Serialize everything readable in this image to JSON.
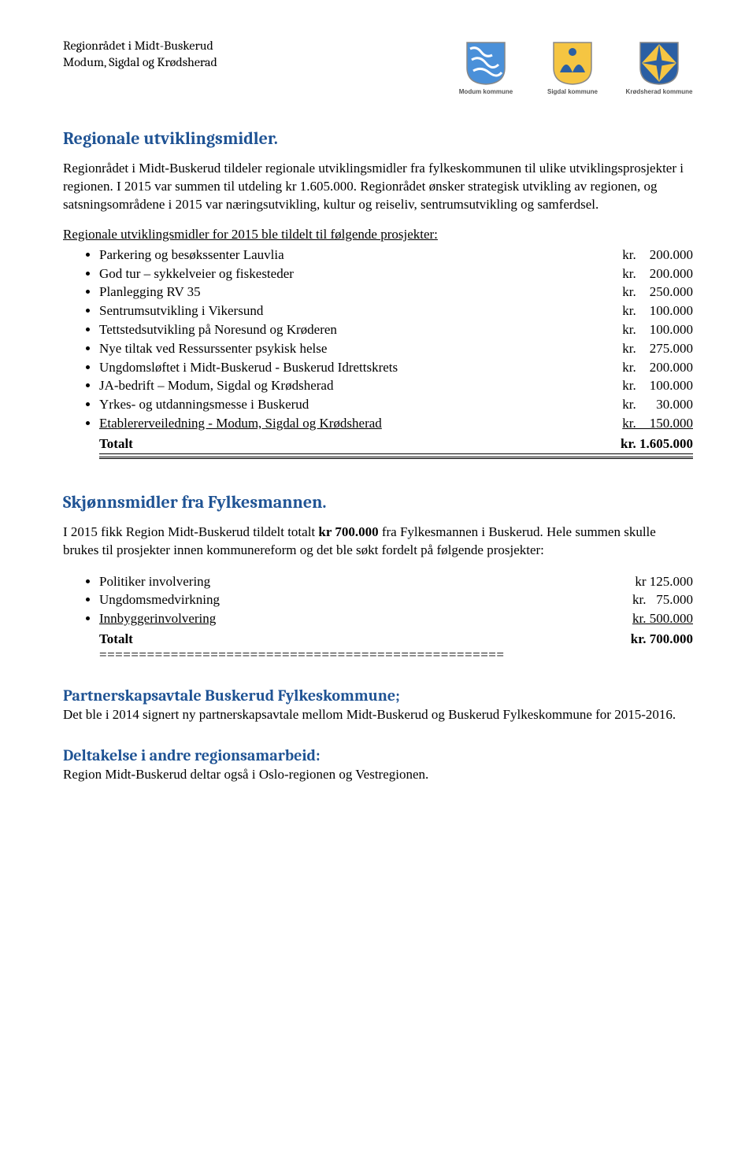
{
  "header": {
    "line1": "Regionrådet i Midt-Buskerud",
    "line2": "Modum, Sigdal og Krødsherad",
    "logos": [
      {
        "caption": "Modum kommune"
      },
      {
        "caption": "Sigdal kommune"
      },
      {
        "caption": "Krødsherad kommune"
      }
    ]
  },
  "section1": {
    "heading": "Regionale utviklingsmidler.",
    "para": "Regionrådet i Midt-Buskerud tildeler regionale utviklingsmidler fra fylkeskommunen til ulike utviklingsprosjekter i regionen. I 2015 var summen til utdeling kr 1.605.000. Regionrådet ønsker strategisk utvikling av regionen, og satsningsområdene i 2015 var næringsutvikling, kultur og reiseliv, sentrumsutvikling og samferdsel.",
    "list_intro": "Regionale utviklingsmidler for 2015 ble tildelt til følgende prosjekter:",
    "items": [
      {
        "label": "Parkering og besøkssenter Lauvlia",
        "amount": "kr.    200.000"
      },
      {
        "label": "God tur – sykkelveier og fiskesteder",
        "amount": "kr.    200.000"
      },
      {
        "label": "Planlegging RV 35",
        "amount": "kr.    250.000"
      },
      {
        "label": "Sentrumsutvikling i Vikersund",
        "amount": "kr.    100.000"
      },
      {
        "label": "Tettstedsutvikling på Noresund og Krøderen",
        "amount": "kr.    100.000"
      },
      {
        "label": "Nye tiltak ved Ressurssenter psykisk helse",
        "amount": "kr.    275.000"
      },
      {
        "label": "Ungdomsløftet i Midt-Buskerud - Buskerud Idrettskrets",
        "amount": "kr.    200.000"
      },
      {
        "label": "JA-bedrift – Modum, Sigdal og Krødsherad",
        "amount": "kr.    100.000"
      },
      {
        "label": "Yrkes- og utdanningsmesse i Buskerud",
        "amount": "kr.      30.000"
      },
      {
        "label": "Etablererveiledning    - Modum, Sigdal og Krødsherad",
        "amount": "kr.    150.000",
        "underline": true
      }
    ],
    "total_label": "Totalt",
    "total_amount": "kr. 1.605.000"
  },
  "section2": {
    "heading": "Skjønnsmidler fra Fylkesmannen.",
    "para_parts": {
      "p1a": "I 2015 fikk Region Midt-Buskerud tildelt totalt ",
      "p1b": "kr 700.000",
      "p1c": " fra Fylkesmannen i Buskerud. Hele summen skulle brukes til prosjekter innen kommunereform og det ble søkt fordelt på følgende prosjekter:"
    },
    "items": [
      {
        "label": "Politiker involvering",
        "amount": "kr 125.000"
      },
      {
        "label": "Ungdomsmedvirkning",
        "amount": "kr.   75.000"
      },
      {
        "label": "Innbyggerinvolvering",
        "amount": "kr. 500.000",
        "underline": true
      }
    ],
    "total_label": "Totalt",
    "total_amount": "kr. 700.000",
    "eqline": "==================================================="
  },
  "section3": {
    "heading": "Partnerskapsavtale Buskerud Fylkeskommune;",
    "para": "Det ble i 2014 signert ny partnerskapsavtale mellom Midt-Buskerud og Buskerud Fylkeskommune for 2015-2016."
  },
  "section4": {
    "heading": "Deltakelse i andre regionsamarbeid:",
    "para": "Region Midt-Buskerud deltar også i Oslo-regionen og Vestregionen."
  }
}
